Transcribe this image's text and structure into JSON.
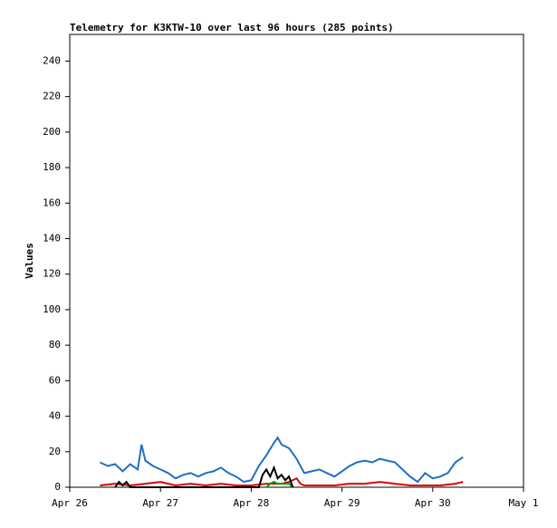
{
  "chart_data": {
    "type": "line",
    "title": "Telemetry for K3KTW-10 over last 96 hours (285 points)",
    "y_label": "Values",
    "xlim": [
      0,
      120
    ],
    "xticks": [
      {
        "value": 0,
        "label": "Apr 26"
      },
      {
        "value": 24,
        "label": "Apr 27"
      },
      {
        "value": 48,
        "label": "Apr 28"
      },
      {
        "value": 72,
        "label": "Apr 29"
      },
      {
        "value": 96,
        "label": "Apr 30"
      },
      {
        "value": 120,
        "label": "May 1"
      }
    ],
    "ylim": [
      0,
      255
    ],
    "yticks": [
      0,
      20,
      40,
      60,
      80,
      100,
      120,
      140,
      160,
      180,
      200,
      220,
      240
    ],
    "grid": false,
    "series": [
      {
        "color": "#1f6fc5",
        "x": [
          8,
          10,
          12,
          14,
          16,
          18,
          19,
          20,
          22,
          24,
          26,
          28,
          30,
          32,
          34,
          36,
          38,
          40,
          42,
          44,
          46,
          48,
          50,
          52,
          54,
          55,
          56,
          58,
          60,
          62,
          64,
          66,
          68,
          70,
          72,
          74,
          76,
          78,
          80,
          82,
          84,
          86,
          88,
          90,
          92,
          94,
          96,
          98,
          100,
          102,
          104
        ],
        "values": [
          14,
          12,
          13,
          9,
          13,
          10,
          24,
          15,
          12,
          10,
          8,
          5,
          7,
          8,
          6,
          8,
          9,
          11,
          8,
          6,
          3,
          4,
          12,
          18,
          25,
          28,
          24,
          22,
          16,
          8,
          9,
          10,
          8,
          6,
          9,
          12,
          14,
          15,
          14,
          16,
          15,
          14,
          10,
          6,
          3,
          8,
          5,
          6,
          8,
          14,
          17
        ]
      },
      {
        "color": "#e00000",
        "x": [
          8,
          12,
          16,
          20,
          24,
          28,
          32,
          36,
          40,
          44,
          48,
          52,
          56,
          58,
          60,
          61,
          62,
          66,
          70,
          74,
          78,
          82,
          86,
          90,
          94,
          98,
          102,
          104
        ],
        "values": [
          1,
          2,
          1,
          2,
          3,
          1,
          2,
          1,
          2,
          1,
          1,
          2,
          2,
          3,
          5,
          2,
          1,
          1,
          1,
          2,
          2,
          3,
          2,
          1,
          1,
          1,
          2,
          3
        ]
      },
      {
        "color": "#00a000",
        "x": [
          52,
          53,
          54,
          55,
          56,
          57,
          58,
          59
        ],
        "values": [
          0,
          2,
          3,
          2,
          2,
          2,
          2,
          0
        ]
      },
      {
        "color": "#000000",
        "x": [
          12,
          13,
          14,
          15,
          16,
          50,
          51,
          52,
          53,
          54,
          55,
          56,
          57,
          58,
          59
        ],
        "values": [
          0,
          3,
          1,
          3,
          0,
          0,
          7,
          10,
          6,
          11,
          5,
          7,
          4,
          6,
          0
        ]
      }
    ]
  }
}
